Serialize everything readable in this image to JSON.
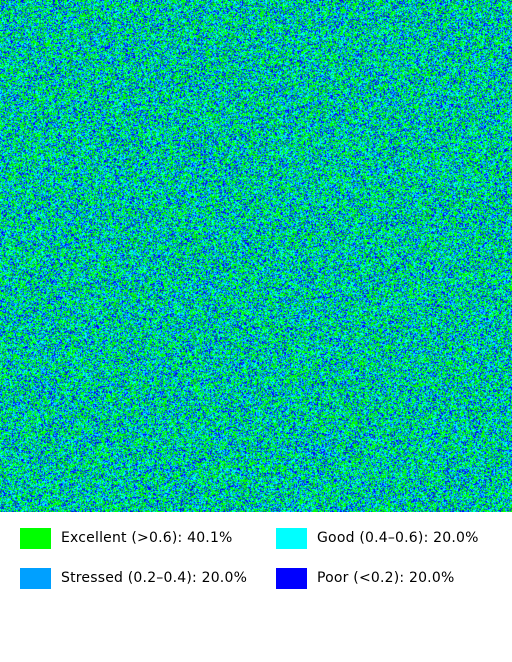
{
  "map": {
    "description_colors": {
      "excellent": "#00ff00",
      "good": "#00ffff",
      "stressed": "#00a0ff",
      "poor": "#0000ff"
    },
    "class_shares": {
      "excellent": 0.401,
      "good": 0.2,
      "stressed": 0.2,
      "poor": 0.2
    }
  },
  "legend": {
    "items": [
      {
        "label": "Excellent (>0.6): 40.1%",
        "color": "#00ff00"
      },
      {
        "label": "Good (0.4–0.6): 20.0%",
        "color": "#00ffff"
      },
      {
        "label": "Stressed (0.2–0.4): 20.0%",
        "color": "#00a0ff"
      },
      {
        "label": "Poor (<0.2): 20.0%",
        "color": "#0000ff"
      }
    ]
  }
}
